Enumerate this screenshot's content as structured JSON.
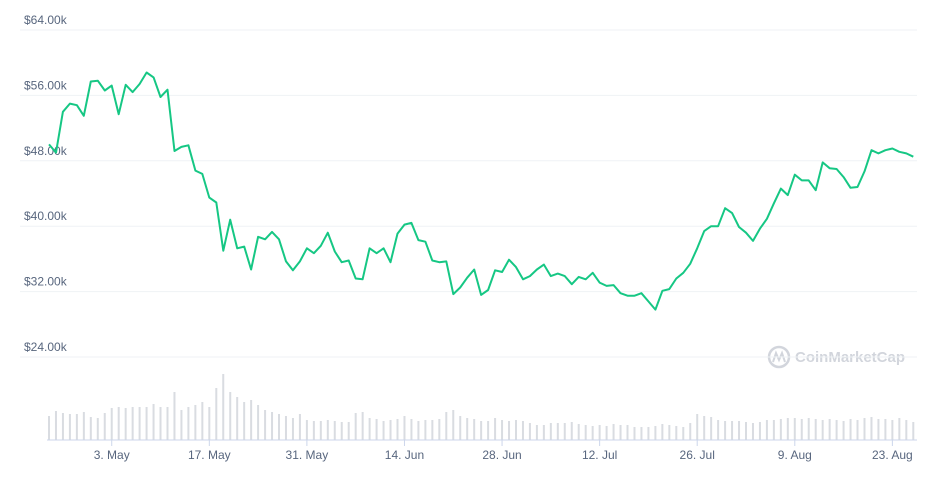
{
  "chart_data": {
    "type": "line",
    "color": "#16c784",
    "volume_color": "#d9dce1",
    "grid": true,
    "watermark": "CoinMarketCap",
    "ylim": [
      24,
      64
    ],
    "yticks": [
      {
        "value": 24,
        "label": "$24.00k"
      },
      {
        "value": 32,
        "label": "$32.00k"
      },
      {
        "value": 40,
        "label": "$40.00k"
      },
      {
        "value": 48,
        "label": "$48.00k"
      },
      {
        "value": 56,
        "label": "$56.00k"
      },
      {
        "value": 64,
        "label": "$64.00k"
      }
    ],
    "categories": [
      null,
      null,
      null,
      null,
      null,
      null,
      null,
      null,
      null,
      "3. May",
      null,
      null,
      null,
      null,
      null,
      null,
      null,
      null,
      null,
      null,
      null,
      null,
      null,
      "17. May",
      null,
      null,
      null,
      null,
      null,
      null,
      null,
      null,
      null,
      null,
      null,
      null,
      null,
      "31. May",
      null,
      null,
      null,
      null,
      null,
      null,
      null,
      null,
      null,
      null,
      null,
      null,
      null,
      "14. Jun",
      null,
      null,
      null,
      null,
      null,
      null,
      null,
      null,
      null,
      null,
      null,
      null,
      null,
      "28. Jun",
      null,
      null,
      null,
      null,
      null,
      null,
      null,
      null,
      null,
      null,
      null,
      null,
      null,
      "12. Jul",
      null,
      null,
      null,
      null,
      null,
      null,
      null,
      null,
      null,
      null,
      null,
      null,
      null,
      "26. Jul",
      null,
      null,
      null,
      null,
      null,
      null,
      null,
      null,
      null,
      null,
      null,
      null,
      null,
      "9. Aug",
      null,
      null,
      null,
      null,
      null,
      null,
      null,
      null,
      null,
      null,
      null,
      null,
      null,
      "23. Aug",
      null,
      null,
      null
    ],
    "values": [
      50.0,
      49.0,
      54.0,
      55.0,
      54.8,
      53.5,
      57.7,
      57.8,
      56.6,
      57.2,
      53.7,
      57.3,
      56.4,
      57.4,
      58.8,
      58.2,
      55.8,
      56.7,
      49.2,
      49.7,
      49.9,
      46.8,
      46.4,
      43.5,
      42.9,
      37.0,
      40.8,
      37.3,
      37.5,
      34.7,
      38.7,
      38.4,
      39.3,
      38.4,
      35.7,
      34.6,
      35.7,
      37.3,
      36.7,
      37.6,
      39.2,
      36.9,
      35.6,
      35.8,
      33.6,
      33.5,
      37.3,
      36.7,
      37.3,
      35.6,
      39.1,
      40.2,
      40.4,
      38.3,
      38.1,
      35.8,
      35.6,
      35.7,
      31.7,
      32.5,
      33.7,
      34.7,
      31.6,
      32.2,
      34.6,
      34.4,
      35.9,
      35.0,
      33.5,
      33.9,
      34.7,
      35.3,
      33.9,
      34.2,
      33.9,
      32.9,
      33.8,
      33.5,
      34.3,
      33.1,
      32.7,
      32.8,
      31.8,
      31.5,
      31.5,
      31.8,
      30.8,
      29.8,
      32.1,
      32.3,
      33.6,
      34.3,
      35.4,
      37.3,
      39.4,
      40.0,
      40.0,
      42.2,
      41.6,
      39.9,
      39.2,
      38.2,
      39.7,
      40.9,
      42.8,
      44.6,
      43.8,
      46.3,
      45.6,
      45.6,
      44.4,
      47.8,
      47.1,
      47.0,
      46.0,
      44.7,
      44.8,
      46.7,
      49.3,
      48.9,
      49.3,
      49.5,
      49.1,
      48.9,
      48.5
    ],
    "volume": [
      24,
      29,
      27,
      26,
      26,
      28,
      23,
      22,
      27,
      32,
      33,
      32,
      33,
      33,
      33,
      36,
      33,
      33,
      48,
      30,
      33,
      35,
      38,
      33,
      52,
      66,
      48,
      43,
      38,
      40,
      35,
      30,
      28,
      26,
      24,
      22,
      26,
      20,
      19,
      19,
      20,
      19,
      18,
      18,
      27,
      28,
      22,
      21,
      19,
      20,
      21,
      24,
      21,
      19,
      20,
      20,
      21,
      28,
      30,
      24,
      22,
      21,
      19,
      19,
      22,
      20,
      19,
      20,
      19,
      17,
      15,
      15,
      17,
      17,
      17,
      18,
      16,
      15,
      14,
      15,
      14,
      16,
      15,
      15,
      13,
      13,
      13,
      14,
      16,
      15,
      14,
      13,
      17,
      26,
      24,
      23,
      20,
      19,
      19,
      19,
      18,
      17,
      18,
      20,
      20,
      21,
      22,
      22,
      21,
      22,
      21,
      20,
      21,
      20,
      19,
      21,
      20,
      22,
      23,
      21,
      21,
      20,
      22,
      20,
      18
    ]
  }
}
